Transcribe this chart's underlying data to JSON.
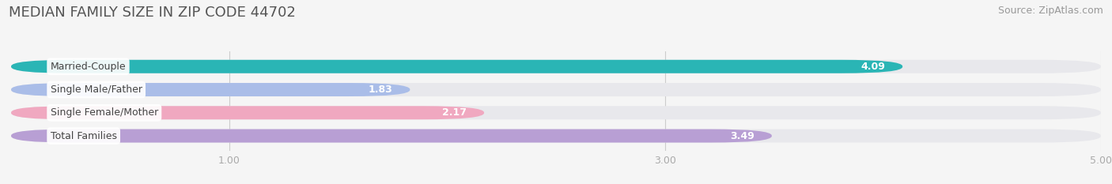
{
  "title": "MEDIAN FAMILY SIZE IN ZIP CODE 44702",
  "source": "Source: ZipAtlas.com",
  "categories": [
    "Married-Couple",
    "Single Male/Father",
    "Single Female/Mother",
    "Total Families"
  ],
  "values": [
    4.09,
    1.83,
    2.17,
    3.49
  ],
  "bar_colors": [
    "#2ab5b5",
    "#aabde8",
    "#f0a8c0",
    "#b89fd4"
  ],
  "xlim": [
    0,
    5.0
  ],
  "xticks": [
    1.0,
    3.0,
    5.0
  ],
  "bar_height": 0.58,
  "track_color": "#e8e8ec",
  "background_color": "#f5f5f5",
  "plot_bg_color": "#f5f5f5",
  "title_fontsize": 13,
  "source_fontsize": 9,
  "label_fontsize": 9,
  "value_fontsize": 9,
  "title_color": "#555555",
  "source_color": "#999999",
  "label_color": "#444444",
  "value_color": "#ffffff",
  "tick_color": "#aaaaaa"
}
